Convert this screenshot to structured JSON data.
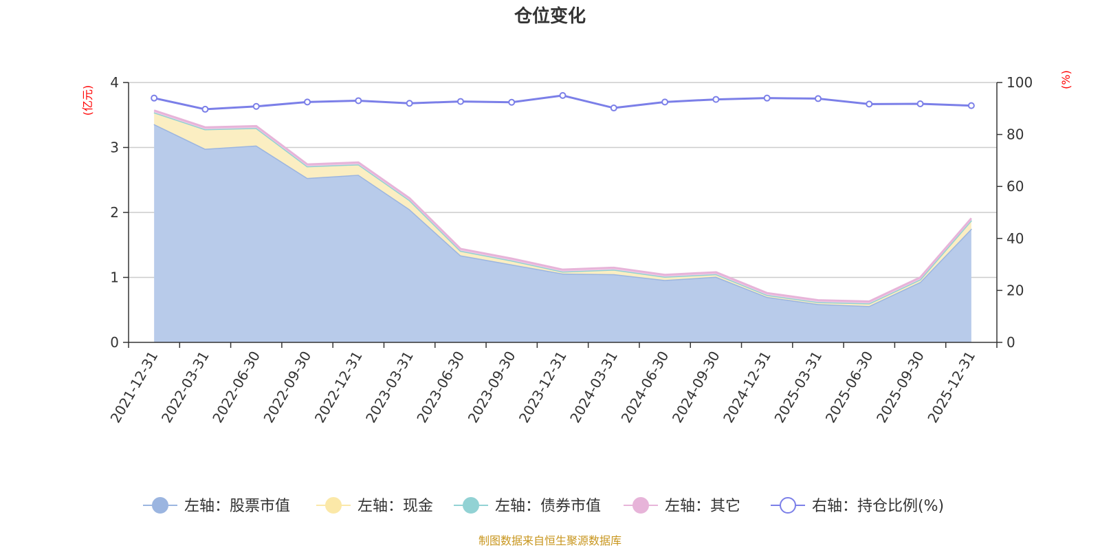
{
  "chart_data": {
    "type": "area",
    "title": "仓位变化",
    "left_unit": "(亿元)",
    "right_unit": "(%)",
    "categories": [
      "2021-12-31",
      "2022-03-31",
      "2022-06-30",
      "2022-09-30",
      "2022-12-31",
      "2023-03-31",
      "2023-06-30",
      "2023-09-30",
      "2023-12-31",
      "2024-03-31",
      "2024-06-30",
      "2024-09-30",
      "2024-12-31",
      "2025-03-31",
      "2025-06-30",
      "2025-09-30",
      "2025-12-31"
    ],
    "left_axis": {
      "min": 0,
      "max": 4,
      "ticks": [
        "0",
        "1",
        "2",
        "3",
        "4"
      ]
    },
    "right_axis": {
      "min": 0,
      "max": 100,
      "ticks": [
        "0",
        "20",
        "40",
        "60",
        "80",
        "100"
      ]
    },
    "grid": true,
    "stacked_series": [
      {
        "name": "左轴：股票市值",
        "color": "#9bb5e0",
        "fill": "#b8cbea",
        "values": [
          3.36,
          2.98,
          3.03,
          2.53,
          2.58,
          2.05,
          1.34,
          1.2,
          1.06,
          1.05,
          0.96,
          1.01,
          0.7,
          0.59,
          0.56,
          0.93,
          1.75
        ]
      },
      {
        "name": "左轴：现金",
        "color": "#fbe8a8",
        "fill": "#fbeec2",
        "values": [
          0.18,
          0.3,
          0.27,
          0.18,
          0.16,
          0.14,
          0.07,
          0.06,
          0.03,
          0.07,
          0.05,
          0.04,
          0.03,
          0.03,
          0.04,
          0.04,
          0.13
        ]
      },
      {
        "name": "左轴：债券市值",
        "color": "#92d2d4",
        "fill": "#b7e2e3",
        "values": [
          0,
          0,
          0,
          0,
          0,
          0,
          0,
          0,
          0,
          0,
          0,
          0,
          0,
          0,
          0,
          0,
          0
        ]
      },
      {
        "name": "左轴：其它",
        "color": "#e7b4d9",
        "fill": "#efcbe5",
        "values": [
          0.03,
          0.03,
          0.03,
          0.03,
          0.03,
          0.03,
          0.03,
          0.03,
          0.03,
          0.03,
          0.03,
          0.03,
          0.03,
          0.03,
          0.03,
          0.03,
          0.03
        ]
      }
    ],
    "line_series": {
      "name": "右轴：持仓比例(%)",
      "color": "#7b7fe8",
      "values": [
        94.0,
        89.7,
        90.8,
        92.5,
        93.0,
        92.0,
        92.7,
        92.4,
        95.0,
        90.2,
        92.5,
        93.5,
        94.0,
        93.8,
        91.7,
        91.8,
        91.1
      ]
    },
    "legend_position": "bottom"
  },
  "source": "制图数据来自恒生聚源数据库"
}
